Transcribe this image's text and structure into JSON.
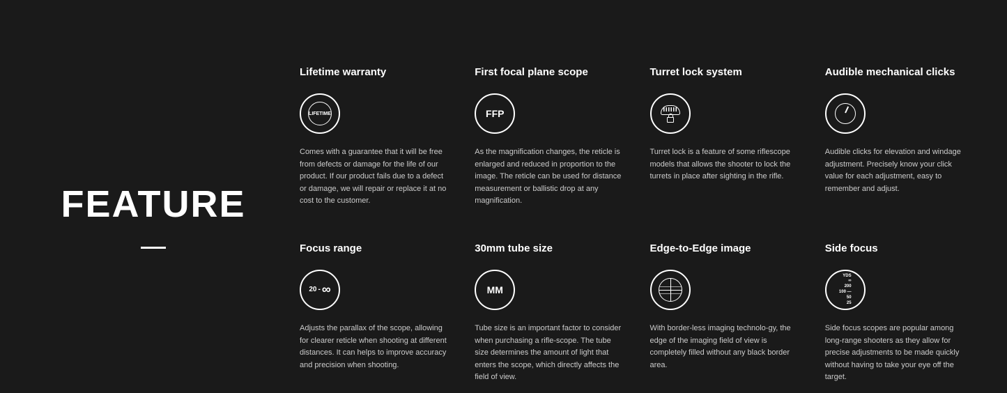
{
  "main_title": "Feature",
  "features": [
    {
      "heading": "Lifetime warranty",
      "icon_type": "badge",
      "icon_text": "LIFETIME",
      "description": "Comes with a guarantee that it will be free from defects or damage for the life of our product. If our product fails due to a defect or damage, we will repair or replace it at no cost to the customer."
    },
    {
      "heading": "First focal plane scope",
      "icon_type": "text",
      "icon_text": "FFP",
      "description": "As the magnification changes, the reticle is enlarged and reduced in proportion to the image. The reticle can be used for distance measurement or ballistic drop at any magnification."
    },
    {
      "heading": "Turret lock system",
      "icon_type": "turret",
      "icon_text": "",
      "description": "Turret lock is a feature of some riflescope models that allows the shooter to lock the turrets in place after sighting in the rifle."
    },
    {
      "heading": "Audible mechanical clicks",
      "icon_type": "dial",
      "icon_text": "",
      "description": "Audible clicks for elevation and windage adjustment. Precisely know your click value for each adjustment, easy to remember and adjust."
    },
    {
      "heading": "Focus range",
      "icon_type": "focus",
      "icon_text": "20",
      "description": "Adjusts the parallax of the scope, allowing for clearer reticle when shooting at different distances. It can helps to improve accuracy and precision when shooting."
    },
    {
      "heading": "30mm tube size",
      "icon_type": "text",
      "icon_text": "MM",
      "description": "Tube size is an important factor to consider when purchasing a rifle-scope. The tube size determines the amount of light that enters the scope, which directly affects the field of view."
    },
    {
      "heading": "Edge-to-Edge image",
      "icon_type": "grid",
      "icon_text": "",
      "description": "With border-less imaging technolo-gy, the edge of the imaging field of view is completely filled without any black border area."
    },
    {
      "heading": "Side focus",
      "icon_type": "sidefocus",
      "icon_text": "",
      "description": "Side focus scopes are popular among long-range shooters as they allow for precise adjustments to be made quickly without having to take your eye off the target."
    }
  ],
  "sidefocus_labels": [
    "YDS",
    "∞",
    "200",
    "100 —",
    "50",
    "25"
  ]
}
